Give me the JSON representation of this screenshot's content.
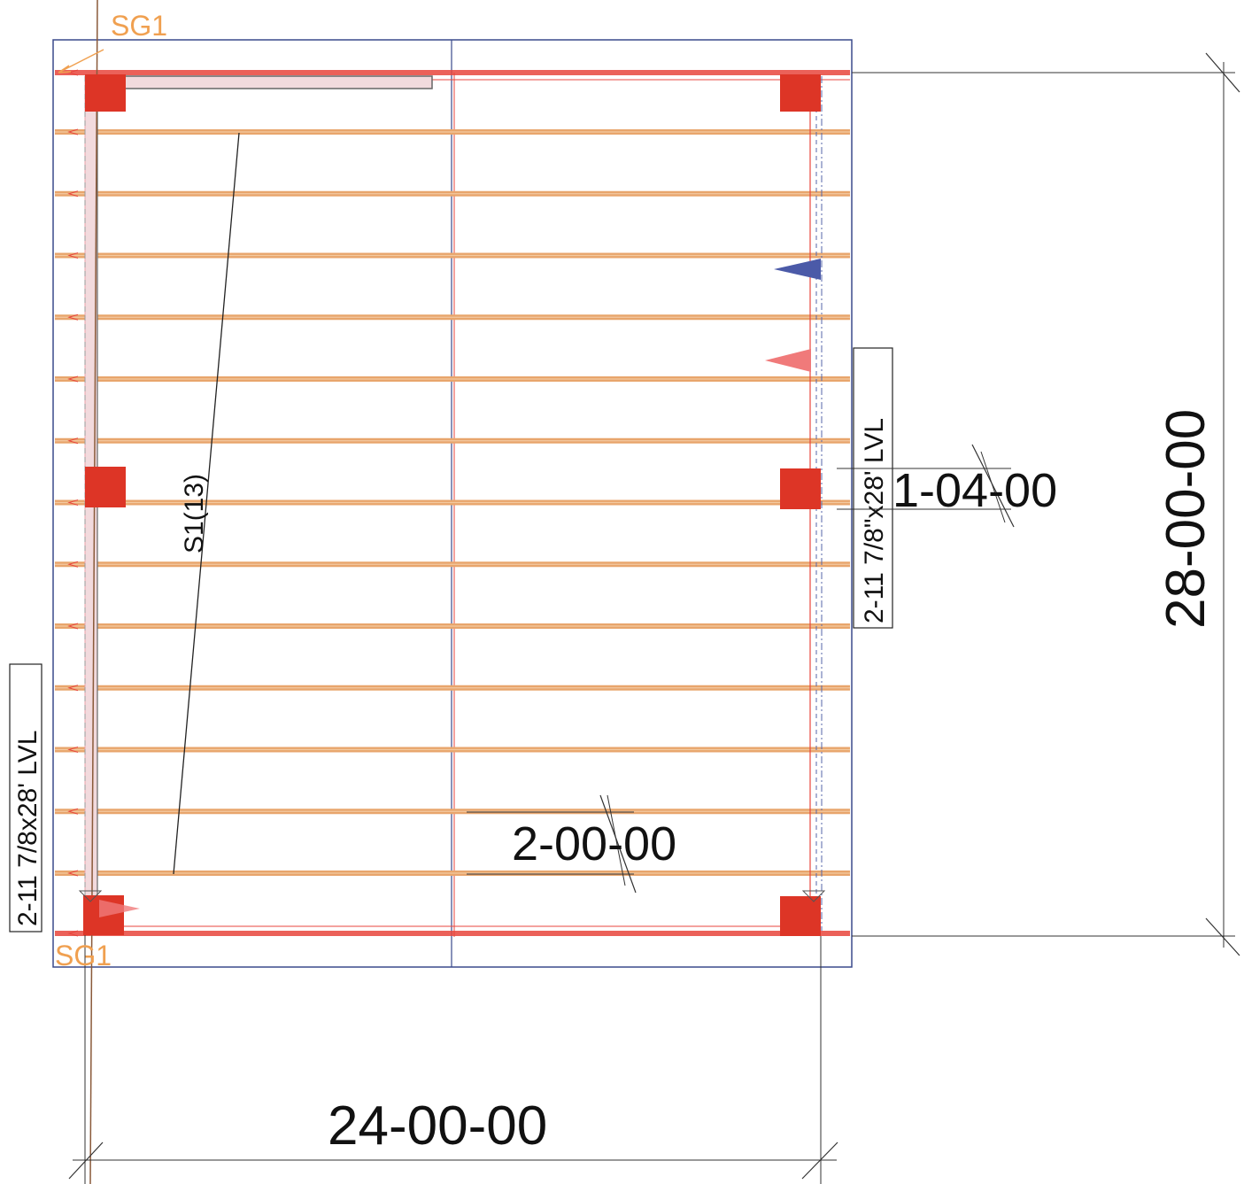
{
  "colors": {
    "joist": "#e8a56c",
    "joist_core": "#f3c9a0",
    "beam_line": "#e8453c",
    "post": "#dd3526",
    "outline": "#3a4a8c",
    "grid_mark": "#f0a050",
    "dim_line": "#333333",
    "flag_blue": "#4b5aa8",
    "flag_red": "#f07a7a"
  },
  "icons": {
    "post": "square-post-icon",
    "flag": "triangle-flag-icon",
    "dim_tick": "dimension-tick-icon"
  },
  "grid_marks": {
    "top": "SG1",
    "bottom": "SG1"
  },
  "dimensions": {
    "overall_height": "28-00-00",
    "overall_width": "24-00-00",
    "post_offset": "1-04-00",
    "joist_spacing": "2-00-00"
  },
  "beams": {
    "left": "2-11 7/8x28' LVL",
    "right": "2-11 7/8\"x28' LVL"
  },
  "joists": {
    "label": "S1(13)",
    "count": 13
  }
}
